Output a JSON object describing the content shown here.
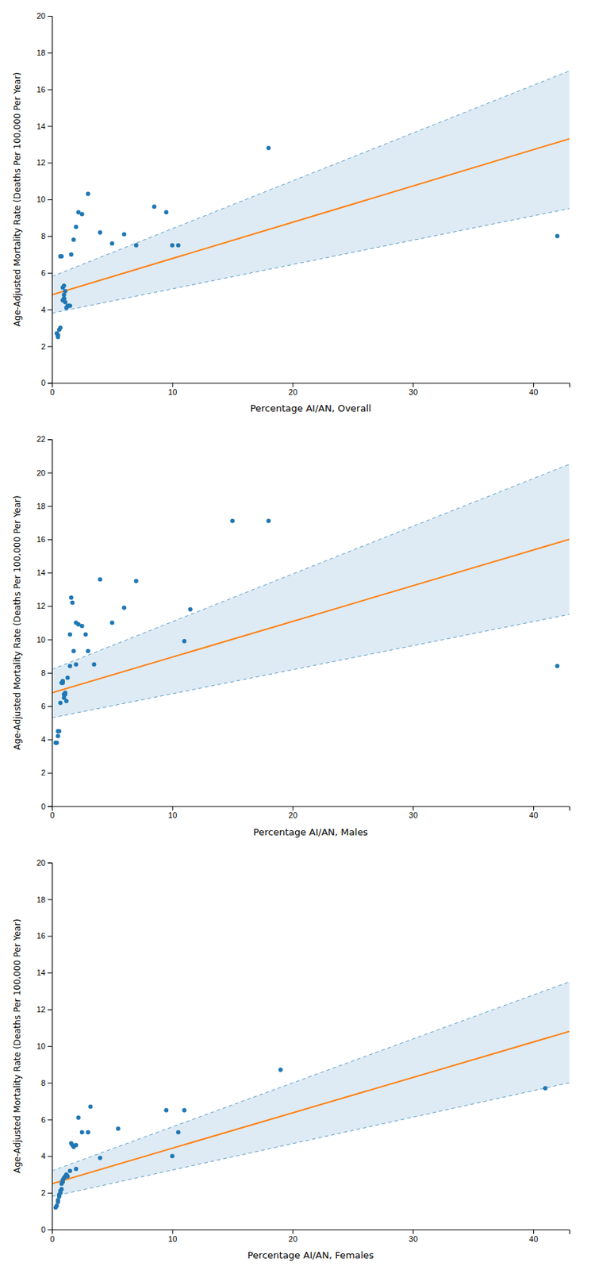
{
  "chart_data": [
    {
      "type": "scatter",
      "xlabel": "Percentage AI/AN, Overall",
      "ylabel": "Age-Adjusted Mortality Rate (Deaths Per 100,000 Per Year)",
      "series": [
        {
          "type": "band",
          "x": [
            0,
            43
          ],
          "upper": [
            5.8,
            17.0
          ],
          "lower": [
            3.8,
            9.5
          ],
          "line_style": "dashed"
        },
        {
          "type": "line",
          "x": [
            0,
            43
          ],
          "values": [
            4.8,
            13.3
          ]
        },
        {
          "type": "scatter",
          "x": [
            0.4,
            0.5,
            0.5,
            0.6,
            0.7,
            0.7,
            0.8,
            0.9,
            0.9,
            1.0,
            1.0,
            1.0,
            1.0,
            1.0,
            1.1,
            1.1,
            1.2,
            1.3,
            1.4,
            1.5,
            1.6,
            1.8,
            2.0,
            2.2,
            2.5,
            3.0,
            4.0,
            5.0,
            6.0,
            7.0,
            8.5,
            9.5,
            10.0,
            10.5,
            18.0,
            42.0
          ],
          "values": [
            2.7,
            2.6,
            2.5,
            2.9,
            3.0,
            6.9,
            6.9,
            4.5,
            5.2,
            4.6,
            4.6,
            5.3,
            4.6,
            4.8,
            4.4,
            5.0,
            4.1,
            4.2,
            4.2,
            4.2,
            7.0,
            7.8,
            8.5,
            9.3,
            9.2,
            10.3,
            8.2,
            7.6,
            8.1,
            7.5,
            9.6,
            9.3,
            7.5,
            7.5,
            12.8,
            8.0
          ]
        }
      ],
      "xlim": [
        0,
        43
      ],
      "ylim": [
        0,
        20
      ],
      "xticks": [
        0,
        10,
        20,
        30,
        40
      ],
      "yticks": [
        0,
        2,
        4,
        6,
        8,
        10,
        12,
        14,
        16,
        18,
        20
      ]
    },
    {
      "type": "scatter",
      "xlabel": "Percentage AI/AN, Males",
      "ylabel": "Age-Adjusted Mortality Rate (Deaths Per 100,000 Per Year)",
      "series": [
        {
          "type": "band",
          "x": [
            0,
            43
          ],
          "upper": [
            8.2,
            20.5
          ],
          "lower": [
            5.3,
            11.5
          ],
          "line_style": "dashed"
        },
        {
          "type": "line",
          "x": [
            0,
            43
          ],
          "values": [
            6.8,
            16.0
          ]
        },
        {
          "type": "scatter",
          "x": [
            0.3,
            0.4,
            0.5,
            0.5,
            0.6,
            0.7,
            0.8,
            0.9,
            0.9,
            1.0,
            1.0,
            1.1,
            1.1,
            1.2,
            1.3,
            1.5,
            1.5,
            1.6,
            1.7,
            1.8,
            2.0,
            2.0,
            2.2,
            2.5,
            2.8,
            3.0,
            3.5,
            4.0,
            5.0,
            6.0,
            7.0,
            11.0,
            11.5,
            15.0,
            18.0,
            42.0
          ],
          "values": [
            3.8,
            3.8,
            4.2,
            4.5,
            4.5,
            6.2,
            7.4,
            7.4,
            7.5,
            6.5,
            6.7,
            6.7,
            6.8,
            6.3,
            7.7,
            8.4,
            10.3,
            12.5,
            12.2,
            9.3,
            8.5,
            11.0,
            10.9,
            10.8,
            10.3,
            9.3,
            8.5,
            13.6,
            11.0,
            11.9,
            13.5,
            9.9,
            11.8,
            17.1,
            17.1,
            8.4
          ]
        }
      ],
      "xlim": [
        0,
        43
      ],
      "ylim": [
        0,
        22
      ],
      "xticks": [
        0,
        10,
        20,
        30,
        40
      ],
      "yticks": [
        0,
        2,
        4,
        6,
        8,
        10,
        12,
        14,
        16,
        18,
        20,
        22
      ]
    },
    {
      "type": "scatter",
      "xlabel": "Percentage AI/AN, Females",
      "ylabel": "Age-Adjusted Mortality Rate (Deaths Per 100,000 Per Year)",
      "series": [
        {
          "type": "band",
          "x": [
            0,
            43
          ],
          "upper": [
            3.2,
            13.5
          ],
          "lower": [
            1.8,
            8.0
          ],
          "line_style": "dashed"
        },
        {
          "type": "line",
          "x": [
            0,
            43
          ],
          "values": [
            2.5,
            10.8
          ]
        },
        {
          "type": "scatter",
          "x": [
            0.3,
            0.4,
            0.5,
            0.5,
            0.6,
            0.6,
            0.7,
            0.7,
            0.8,
            0.8,
            0.9,
            0.9,
            1.0,
            1.0,
            1.1,
            1.2,
            1.3,
            1.5,
            1.6,
            1.7,
            1.8,
            2.0,
            2.0,
            2.2,
            2.5,
            3.0,
            3.2,
            4.0,
            5.5,
            9.5,
            10.0,
            10.5,
            11.0,
            19.0,
            41.0
          ],
          "values": [
            1.2,
            1.3,
            1.5,
            1.6,
            1.8,
            1.9,
            2.0,
            2.1,
            2.2,
            2.5,
            2.6,
            2.7,
            2.8,
            2.8,
            2.9,
            3.0,
            2.9,
            3.2,
            4.7,
            4.6,
            4.5,
            4.6,
            3.3,
            6.1,
            5.3,
            5.3,
            6.7,
            3.9,
            5.5,
            6.5,
            4.0,
            5.3,
            6.5,
            8.7,
            7.7
          ]
        }
      ],
      "xlim": [
        0,
        43
      ],
      "ylim": [
        0,
        20
      ],
      "xticks": [
        0,
        10,
        20,
        30,
        40
      ],
      "yticks": [
        0,
        2,
        4,
        6,
        8,
        10,
        12,
        14,
        16,
        18,
        20
      ]
    }
  ]
}
